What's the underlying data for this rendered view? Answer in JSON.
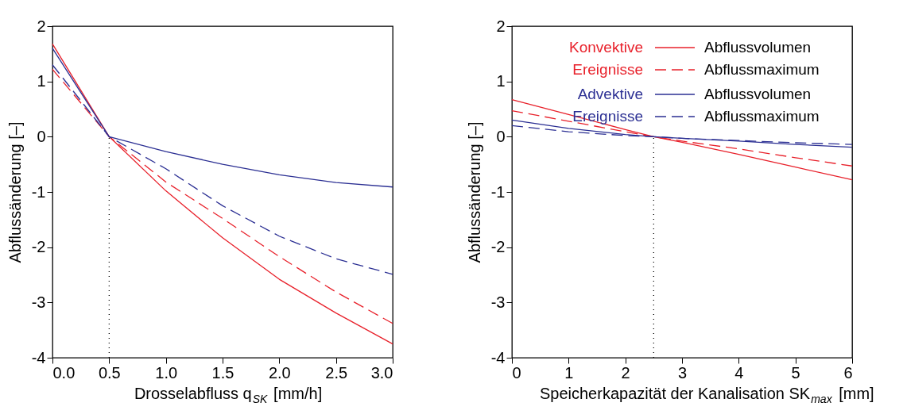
{
  "chart_data": [
    {
      "type": "line",
      "xlabel": "Drosselabfluss q$_{SK}$ [mm/h]",
      "ylabel": "Abflussänderung [–]",
      "x": [
        0,
        0.5,
        1,
        1.5,
        2,
        2.5,
        3
      ],
      "xlim": [
        0,
        3
      ],
      "ylim": [
        -4,
        2
      ],
      "xticks": [
        {
          "value": 0,
          "label": "0.0"
        },
        {
          "value": 0.5,
          "label": "0.5"
        },
        {
          "value": 1,
          "label": "1.0"
        },
        {
          "value": 1.5,
          "label": "1.5"
        },
        {
          "value": 2,
          "label": "2.0"
        },
        {
          "value": 2.5,
          "label": "2.5"
        },
        {
          "value": 3,
          "label": "3.0"
        }
      ],
      "yticks": [
        -4,
        -3,
        -2,
        -1,
        0,
        1,
        2
      ],
      "grid": false,
      "legend": false,
      "marker": "none",
      "series": [
        {
          "color": "#e8202a",
          "line_style": "solid",
          "values": [
            1.68,
            0,
            -0.98,
            -1.83,
            -2.58,
            -3.19,
            -3.75
          ]
        },
        {
          "color": "#e8202a",
          "line_style": "dashed",
          "values": [
            1.22,
            0,
            -0.82,
            -1.48,
            -2.17,
            -2.81,
            -3.38
          ]
        },
        {
          "color": "#2b2f93",
          "line_style": "solid",
          "values": [
            1.6,
            0,
            -0.27,
            -0.5,
            -0.69,
            -0.83,
            -0.91
          ]
        },
        {
          "color": "#2b2f93",
          "line_style": "dashed",
          "values": [
            1.3,
            0,
            -0.58,
            -1.25,
            -1.8,
            -2.21,
            -2.49
          ]
        }
      ],
      "ref_lines": [
        {
          "axis": "x",
          "value": 0.5,
          "color": "#000000",
          "line_style": "dotted"
        }
      ]
    },
    {
      "type": "line",
      "xlabel": "Speicherkapazität der Kanalisation SK$_{max}$ [mm]",
      "ylabel": "Abflussänderung [–]",
      "x": [
        0,
        1,
        2,
        2.5,
        3,
        4,
        5,
        6
      ],
      "xlim": [
        0,
        6
      ],
      "ylim": [
        -4,
        2
      ],
      "xticks": [
        0,
        1,
        2,
        3,
        4,
        5,
        6
      ],
      "yticks": [
        -4,
        -3,
        -2,
        -1,
        0,
        1,
        2
      ],
      "grid": false,
      "legend": "top right",
      "marker": "none",
      "series": [
        {
          "name": "Abflussvolumen",
          "color": "#e8202a",
          "line_style": "solid",
          "values": [
            0.67,
            0.4,
            0.13,
            0,
            -0.1,
            -0.32,
            -0.55,
            -0.78
          ]
        },
        {
          "name": "Abflussmaximum",
          "color": "#e8202a",
          "line_style": "dashed",
          "values": [
            0.47,
            0.28,
            0.09,
            0,
            -0.08,
            -0.22,
            -0.38,
            -0.53
          ]
        },
        {
          "name": "Abflussvolumen",
          "color": "#2b2f93",
          "line_style": "solid",
          "values": [
            0.3,
            0.15,
            0.04,
            0,
            -0.03,
            -0.08,
            -0.14,
            -0.19
          ]
        },
        {
          "name": "Abflussmaximum",
          "color": "#2b2f93",
          "line_style": "dashed",
          "values": [
            0.2,
            0.09,
            0.02,
            0,
            -0.03,
            -0.07,
            -0.11,
            -0.14
          ]
        }
      ],
      "annotations": [
        "Konvektive Ereignisse",
        "Advektive Ereignisse"
      ],
      "ref_lines": [
        {
          "axis": "x",
          "value": 2.5,
          "color": "#000000",
          "line_style": "dotted"
        }
      ]
    }
  ]
}
